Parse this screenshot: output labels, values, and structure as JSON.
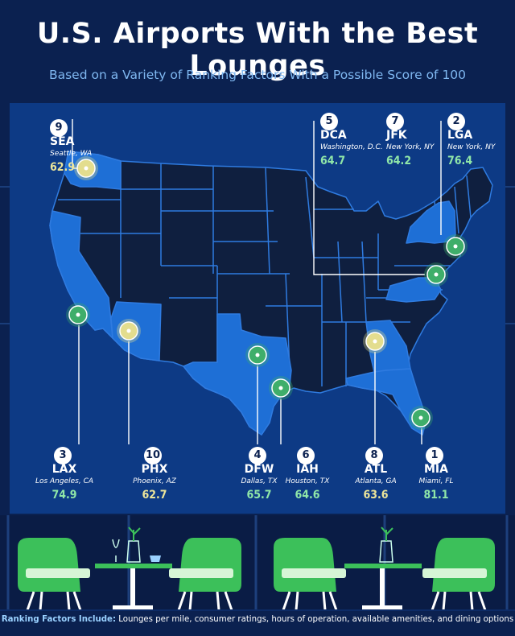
{
  "title": "U.S. Airports With the Best Lounges",
  "subtitle": "Based on a Variety of Ranking Factors With a Possible Score of 100",
  "colors": {
    "background": "#0b2150",
    "map_panel": "#0d3a85",
    "state_dark": "#0f1f3f",
    "state_highlight": "#1e6fd6",
    "score_yellow": "#ece59a",
    "score_green": "#8fe6a8",
    "marker_yellow": "#e3dd8e",
    "marker_green": "#3fae6a",
    "chair_green": "#3cc05a"
  },
  "airports": [
    {
      "rank": "9",
      "code": "SEA",
      "city": "Seattle, WA",
      "score": "62.9",
      "tier": "yellow"
    },
    {
      "rank": "5",
      "code": "DCA",
      "city": "Washington, D.C.",
      "score": "64.7",
      "tier": "green"
    },
    {
      "rank": "7",
      "code": "JFK",
      "city": "New York, NY",
      "score": "64.2",
      "tier": "green"
    },
    {
      "rank": "2",
      "code": "LGA",
      "city": "New York, NY",
      "score": "76.4",
      "tier": "green"
    },
    {
      "rank": "3",
      "code": "LAX",
      "city": "Los Angeles, CA",
      "score": "74.9",
      "tier": "green"
    },
    {
      "rank": "10",
      "code": "PHX",
      "city": "Phoenix, AZ",
      "score": "62.7",
      "tier": "yellow"
    },
    {
      "rank": "4",
      "code": "DFW",
      "city": "Dallas, TX",
      "score": "65.7",
      "tier": "green"
    },
    {
      "rank": "6",
      "code": "IAH",
      "city": "Houston, TX",
      "score": "64.6",
      "tier": "green"
    },
    {
      "rank": "8",
      "code": "ATL",
      "city": "Atlanta, GA",
      "score": "63.6",
      "tier": "yellow"
    },
    {
      "rank": "1",
      "code": "MIA",
      "city": "Miami, FL",
      "score": "81.1",
      "tier": "green"
    }
  ],
  "footer": {
    "label": "Ranking Factors Include:",
    "text": "Lounges per mile, consumer ratings, hours of operation, available amenities, and dining options"
  }
}
